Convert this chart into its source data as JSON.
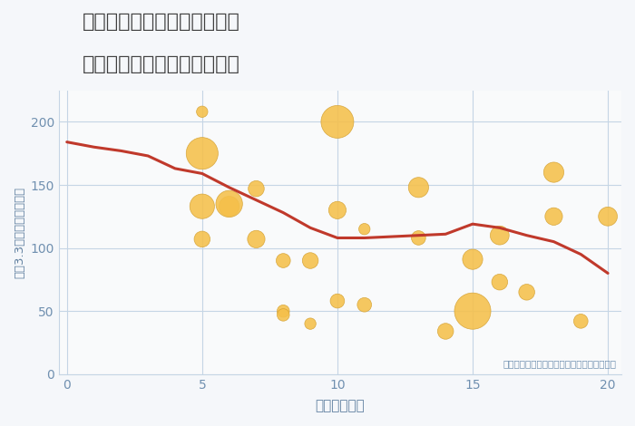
{
  "title_line1": "神奈川県横浜市緑区台村町の",
  "title_line2": "駅距離別中古マンション価格",
  "xlabel": "駅距離（分）",
  "ylabel": "坪（3.3㎡）単価（万円）",
  "annotation": "円の大きさは、取引のあった物件面積を示す",
  "fig_bg_color": "#f5f7fa",
  "plot_bg_color": "#f9fafb",
  "scatter_color": "#f5c04a",
  "scatter_edge_color": "#d4a030",
  "line_color": "#c0392b",
  "annotation_color": "#7090b0",
  "title_color": "#404040",
  "axis_color": "#6080a0",
  "tick_color": "#7090b0",
  "grid_color": "#c5d5e5",
  "xlim": [
    -0.3,
    20.5
  ],
  "ylim": [
    0,
    225
  ],
  "xticks": [
    0,
    5,
    10,
    15,
    20
  ],
  "yticks": [
    0,
    50,
    100,
    150,
    200
  ],
  "scatter_x": [
    5,
    5,
    5,
    5,
    6,
    6,
    7,
    7,
    8,
    8,
    8,
    9,
    9,
    10,
    10,
    10,
    11,
    11,
    13,
    13,
    14,
    15,
    15,
    16,
    16,
    17,
    18,
    18,
    19,
    20
  ],
  "scatter_y": [
    208,
    175,
    133,
    107,
    133,
    135,
    147,
    107,
    90,
    50,
    47,
    90,
    40,
    200,
    130,
    58,
    115,
    55,
    148,
    108,
    34,
    91,
    50,
    110,
    73,
    65,
    160,
    125,
    42,
    125
  ],
  "scatter_size": [
    25,
    200,
    120,
    50,
    80,
    140,
    50,
    60,
    40,
    30,
    30,
    50,
    25,
    210,
    60,
    40,
    25,
    40,
    80,
    40,
    50,
    80,
    260,
    70,
    50,
    50,
    80,
    60,
    40,
    70
  ],
  "line_x": [
    0,
    1,
    2,
    3,
    4,
    5,
    6,
    7,
    8,
    9,
    10,
    11,
    12,
    13,
    14,
    15,
    16,
    17,
    18,
    19,
    20
  ],
  "line_y": [
    184,
    180,
    177,
    173,
    163,
    159,
    148,
    138,
    128,
    116,
    108,
    108,
    109,
    110,
    111,
    119,
    116,
    110,
    105,
    95,
    80
  ]
}
